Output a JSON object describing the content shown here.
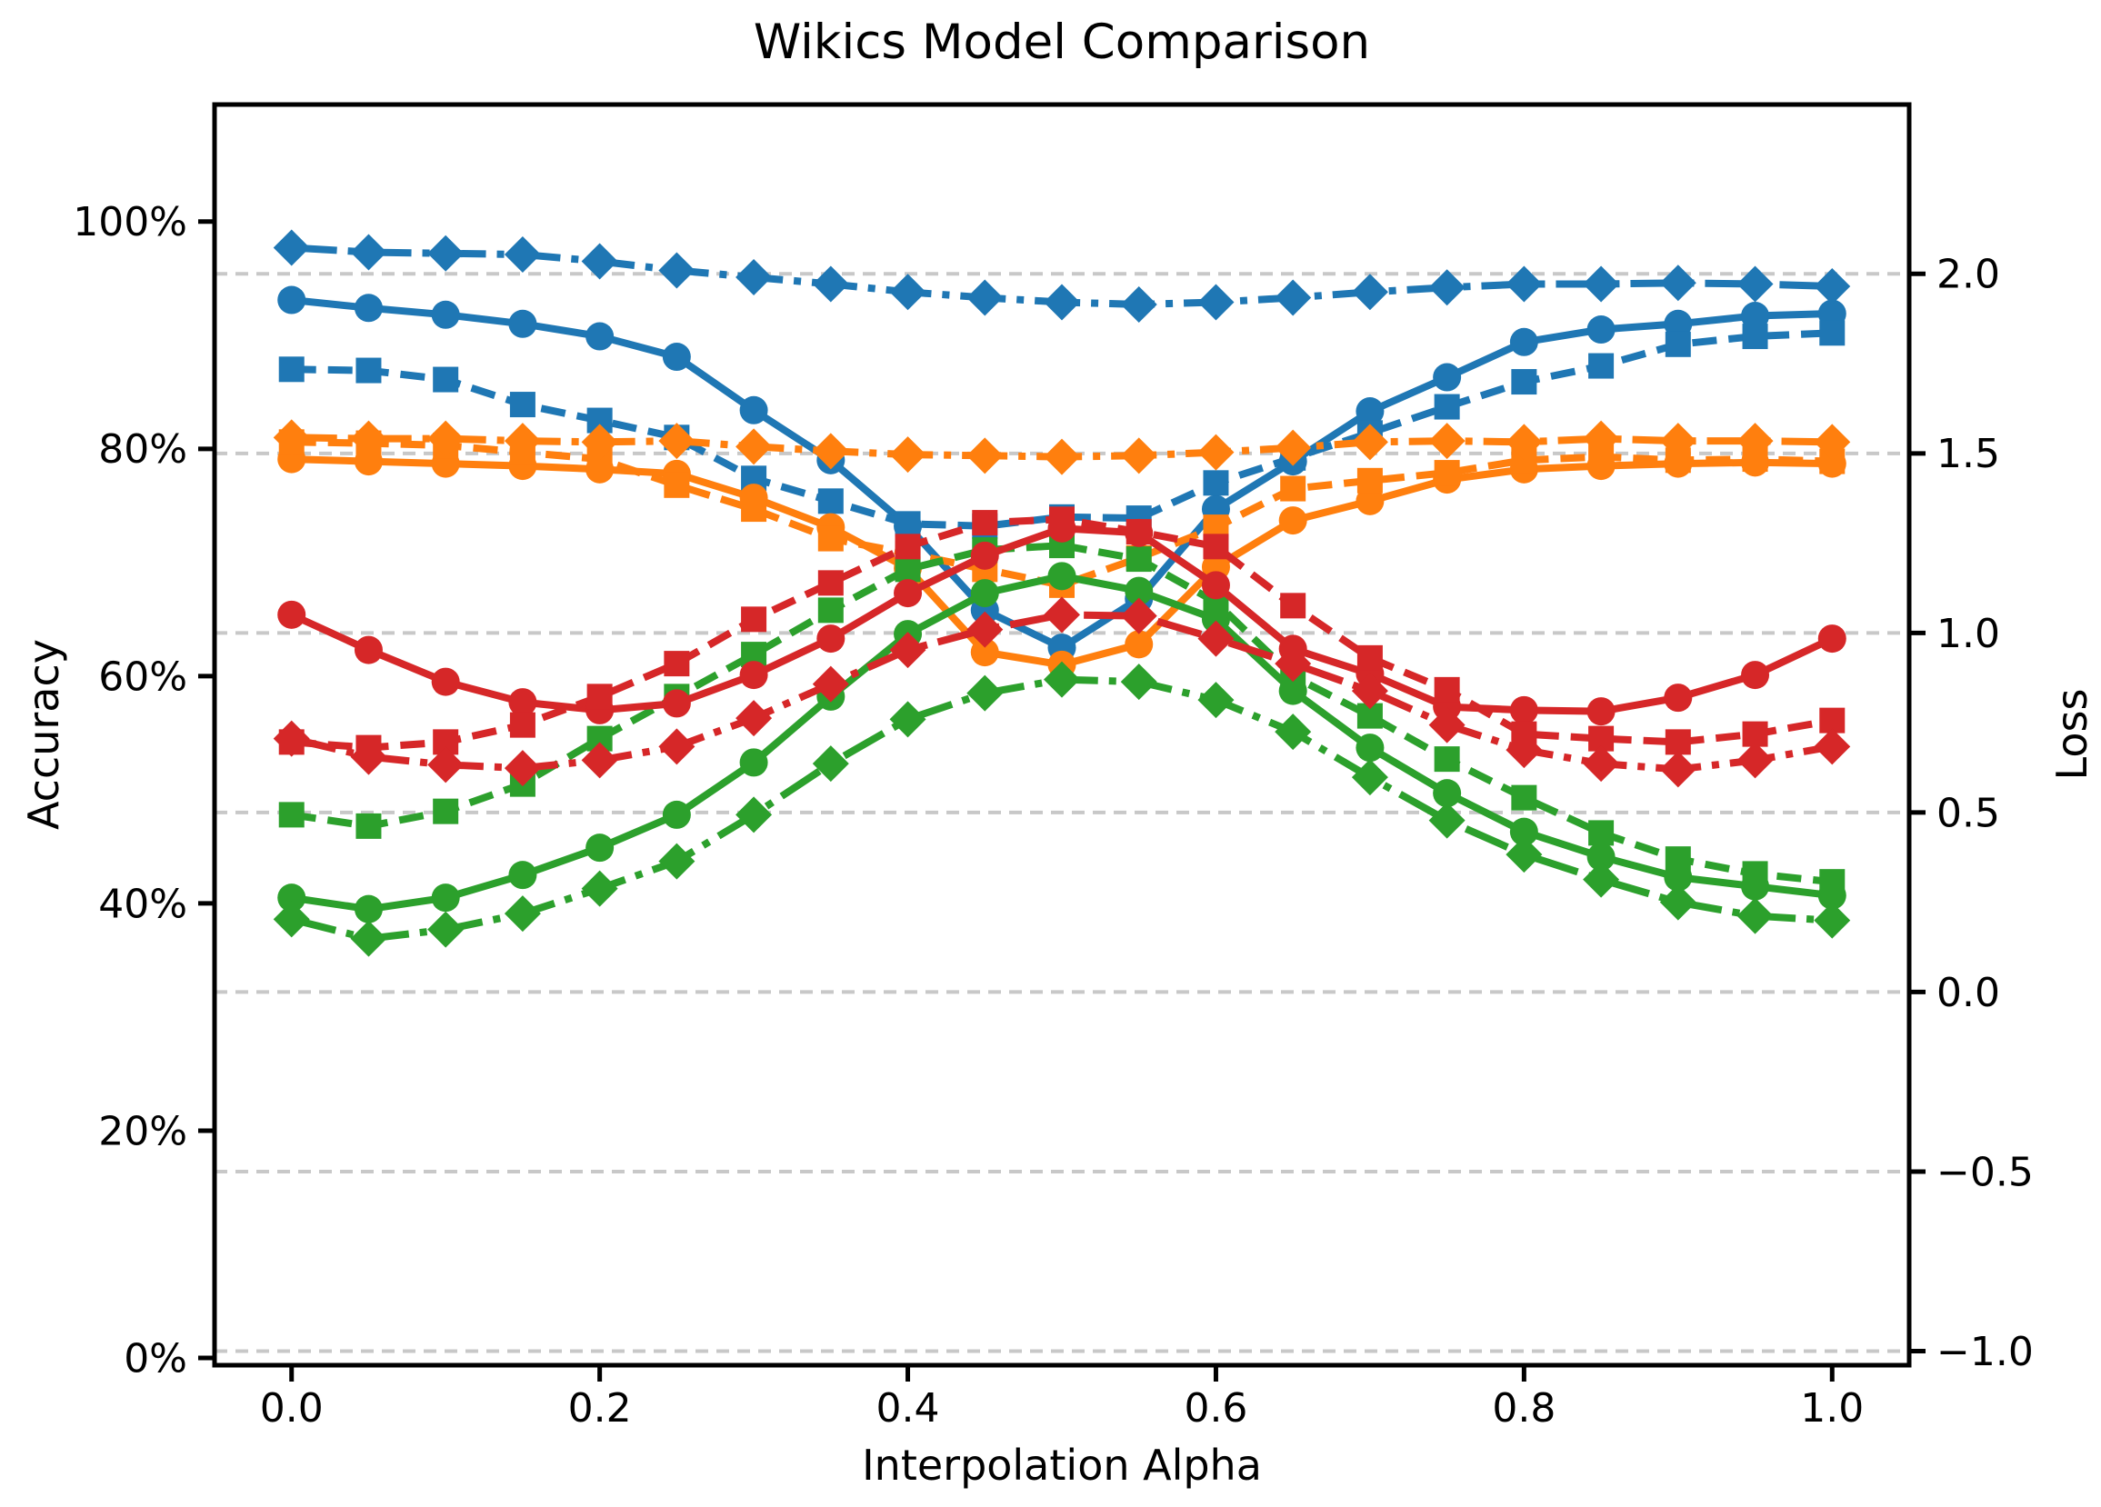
{
  "chart_data": {
    "type": "line",
    "title": "Wikics Model Comparison",
    "xlabel": "Interpolation Alpha",
    "ylabel_left": "Accuracy",
    "ylabel_right": "Loss",
    "units": "left_axis_percent_accuracy",
    "background_color": "#ffffff",
    "axis_color": "#000000",
    "grid": {
      "on": true,
      "color": "#c8c8c8",
      "style": "dashed",
      "aligned_to": "right_axis_ticks"
    },
    "legend": "none",
    "x": [
      0,
      0.05,
      0.1,
      0.15,
      0.2,
      0.25,
      0.3,
      0.35,
      0.4,
      0.45,
      0.5,
      0.55,
      0.6,
      0.65,
      0.7,
      0.75,
      0.8,
      0.85,
      0.9,
      0.95,
      1.0
    ],
    "x_ticks": [
      {
        "v": 0.0,
        "label": "0.0"
      },
      {
        "v": 0.2,
        "label": "0.2"
      },
      {
        "v": 0.4,
        "label": "0.4"
      },
      {
        "v": 0.6,
        "label": "0.6"
      },
      {
        "v": 0.8,
        "label": "0.8"
      },
      {
        "v": 1.0,
        "label": "1.0"
      }
    ],
    "xlim": [
      -0.05,
      1.05
    ],
    "y_left": {
      "lim": [
        -0.64,
        110.3
      ],
      "ticks": [
        {
          "v": 0,
          "label": "0%"
        },
        {
          "v": 20,
          "label": "20%"
        },
        {
          "v": 40,
          "label": "40%"
        },
        {
          "v": 60,
          "label": "60%"
        },
        {
          "v": 80,
          "label": "80%"
        },
        {
          "v": 100,
          "label": "100%"
        }
      ]
    },
    "y_right": {
      "acc_at_loss0": 32.2,
      "acc_per_loss": 31.6,
      "ticks": [
        {
          "v": -1.0,
          "label": "−1.0"
        },
        {
          "v": -0.5,
          "label": "−0.5"
        },
        {
          "v": 0.0,
          "label": "0.0"
        },
        {
          "v": 0.5,
          "label": "0.5"
        },
        {
          "v": 1.0,
          "label": "1.0"
        },
        {
          "v": 1.5,
          "label": "1.5"
        },
        {
          "v": 2.0,
          "label": "2.0"
        }
      ]
    },
    "series": [
      {
        "id": "blue-solid-circle",
        "color": "#1f77b4",
        "marker": "circle",
        "linestyle": "solid",
        "values": [
          93.1,
          92.4,
          91.8,
          91.0,
          89.9,
          88.1,
          83.4,
          79.0,
          73.2,
          65.8,
          62.5,
          66.8,
          74.7,
          78.9,
          83.3,
          86.3,
          89.4,
          90.5,
          91.0,
          91.7,
          91.9
        ]
      },
      {
        "id": "blue-dashed-square",
        "color": "#1f77b4",
        "marker": "square",
        "linestyle": "dashed",
        "values": [
          87.0,
          86.9,
          86.1,
          83.9,
          82.5,
          81.0,
          77.4,
          75.4,
          73.4,
          73.2,
          74.0,
          73.9,
          77.0,
          79.2,
          81.4,
          83.7,
          85.9,
          87.3,
          89.2,
          89.9,
          90.2
        ]
      },
      {
        "id": "blue-dashdot-diamond",
        "color": "#1f77b4",
        "marker": "diamond",
        "linestyle": "dashdot",
        "values": [
          97.7,
          97.3,
          97.2,
          97.1,
          96.5,
          95.7,
          95.1,
          94.5,
          93.8,
          93.3,
          92.9,
          92.7,
          92.9,
          93.3,
          93.8,
          94.2,
          94.5,
          94.5,
          94.6,
          94.5,
          94.3
        ]
      },
      {
        "id": "orange-solid-circle",
        "color": "#ff7f0e",
        "marker": "circle",
        "linestyle": "solid",
        "values": [
          79.1,
          78.9,
          78.7,
          78.5,
          78.2,
          77.8,
          75.7,
          73.1,
          69.5,
          62.1,
          61.0,
          62.8,
          69.6,
          73.7,
          75.4,
          77.3,
          78.2,
          78.5,
          78.7,
          78.8,
          78.7
        ]
      },
      {
        "id": "orange-dashed-square",
        "color": "#ff7f0e",
        "marker": "square",
        "linestyle": "dashed",
        "values": [
          80.6,
          80.5,
          80.3,
          79.7,
          79.1,
          76.8,
          74.7,
          72.1,
          70.8,
          69.4,
          68.0,
          70.4,
          73.1,
          76.5,
          77.2,
          77.9,
          79.0,
          79.3,
          79.0,
          79.1,
          78.9
        ]
      },
      {
        "id": "orange-dashdot-diamond",
        "color": "#ff7f0e",
        "marker": "diamond",
        "linestyle": "dashdot",
        "values": [
          81.0,
          80.9,
          80.9,
          80.7,
          80.6,
          80.7,
          80.2,
          79.8,
          79.5,
          79.4,
          79.3,
          79.4,
          79.7,
          80.1,
          80.6,
          80.7,
          80.6,
          80.9,
          80.7,
          80.7,
          80.6
        ]
      },
      {
        "id": "green-solid-circle",
        "color": "#2ca02c",
        "marker": "circle",
        "linestyle": "solid",
        "values": [
          40.5,
          39.5,
          40.5,
          42.5,
          44.9,
          47.8,
          52.4,
          58.2,
          63.7,
          67.3,
          68.8,
          67.5,
          65.0,
          58.7,
          53.7,
          49.7,
          46.3,
          44.1,
          42.3,
          41.5,
          40.7
        ]
      },
      {
        "id": "green-dashed-square",
        "color": "#2ca02c",
        "marker": "square",
        "linestyle": "dashed",
        "values": [
          47.8,
          46.8,
          48.1,
          50.5,
          54.5,
          58.2,
          61.9,
          65.8,
          69.4,
          71.1,
          71.5,
          70.3,
          66.5,
          60.0,
          56.5,
          52.7,
          49.3,
          46.2,
          43.9,
          42.6,
          41.9
        ]
      },
      {
        "id": "green-dashdot-diamond",
        "color": "#2ca02c",
        "marker": "diamond",
        "linestyle": "dashdot",
        "values": [
          38.6,
          36.9,
          37.7,
          39.1,
          41.3,
          43.7,
          47.8,
          52.3,
          56.2,
          58.5,
          59.7,
          59.5,
          57.9,
          55.1,
          51.1,
          47.3,
          44.3,
          42.1,
          40.1,
          38.9,
          38.5
        ]
      },
      {
        "id": "red-solid-circle",
        "color": "#d62728",
        "marker": "circle",
        "linestyle": "solid",
        "values": [
          65.4,
          62.3,
          59.5,
          57.7,
          57.0,
          57.6,
          60.1,
          63.3,
          67.3,
          70.6,
          73.0,
          72.6,
          68.0,
          62.4,
          60.2,
          57.3,
          57.0,
          56.9,
          58.1,
          60.1,
          63.3
        ]
      },
      {
        "id": "red-dashed-square",
        "color": "#d62728",
        "marker": "square",
        "linestyle": "dashed",
        "values": [
          54.2,
          53.7,
          54.2,
          55.7,
          58.2,
          61.1,
          65.0,
          68.2,
          71.4,
          73.5,
          73.8,
          72.7,
          71.4,
          66.2,
          61.6,
          58.8,
          54.9,
          54.5,
          54.2,
          54.9,
          56.1
        ]
      },
      {
        "id": "red-dashdot-diamond",
        "color": "#d62728",
        "marker": "diamond",
        "linestyle": "dashdot",
        "values": [
          54.5,
          52.9,
          52.2,
          51.9,
          52.6,
          53.8,
          56.3,
          59.3,
          62.3,
          64.1,
          65.4,
          65.3,
          63.3,
          61.1,
          58.7,
          55.7,
          53.5,
          52.3,
          51.8,
          52.6,
          53.8
        ]
      }
    ]
  }
}
